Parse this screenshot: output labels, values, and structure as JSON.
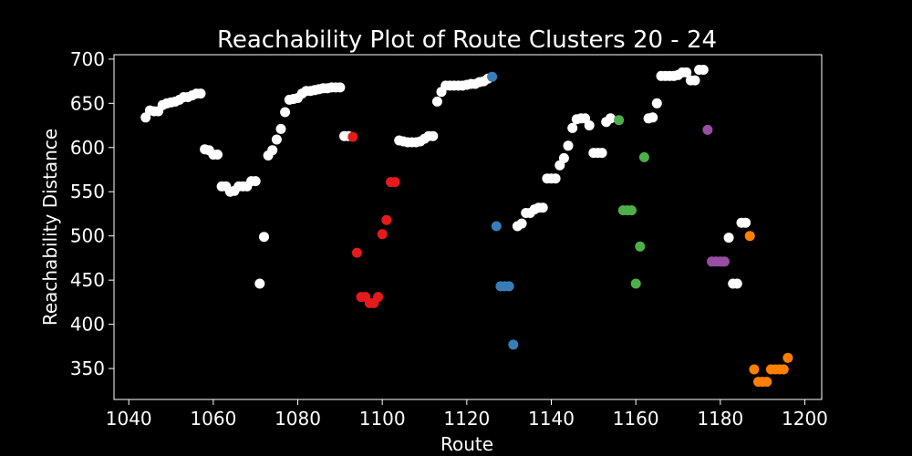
{
  "chart_data": {
    "type": "scatter",
    "title": "Reachability Plot of Route Clusters 20 - 24",
    "xlabel": "Route",
    "ylabel": "Reachability Distance",
    "xlim": [
      1036.5,
      1204.0
    ],
    "ylim": [
      315,
      705
    ],
    "xticks": [
      1040,
      1060,
      1080,
      1100,
      1120,
      1140,
      1160,
      1180,
      1200
    ],
    "yticks": [
      350,
      400,
      450,
      500,
      550,
      600,
      650,
      700
    ],
    "grid": false,
    "legend": "none",
    "series": [
      {
        "color": "#ffffff",
        "points": [
          [
            1044,
            634
          ],
          [
            1045,
            642
          ],
          [
            1046,
            641
          ],
          [
            1047,
            641
          ],
          [
            1048,
            648
          ],
          [
            1049,
            650
          ],
          [
            1050,
            651
          ],
          [
            1051,
            652
          ],
          [
            1052,
            654
          ],
          [
            1053,
            657
          ],
          [
            1054,
            657
          ],
          [
            1055,
            659
          ],
          [
            1056,
            661
          ],
          [
            1057,
            661
          ],
          [
            1058,
            598
          ],
          [
            1059,
            597
          ],
          [
            1060,
            592
          ],
          [
            1061,
            592
          ],
          [
            1062,
            556
          ],
          [
            1063,
            556
          ],
          [
            1064,
            550
          ],
          [
            1065,
            551
          ],
          [
            1066,
            556
          ],
          [
            1067,
            556
          ],
          [
            1068,
            556
          ],
          [
            1069,
            562
          ],
          [
            1070,
            562
          ],
          [
            1071,
            446
          ],
          [
            1072,
            499
          ],
          [
            1073,
            591
          ],
          [
            1074,
            597
          ],
          [
            1075,
            609
          ],
          [
            1076,
            621
          ],
          [
            1077,
            640
          ],
          [
            1078,
            654
          ],
          [
            1079,
            655
          ],
          [
            1080,
            656
          ],
          [
            1081,
            661
          ],
          [
            1082,
            664
          ],
          [
            1083,
            664
          ],
          [
            1084,
            665
          ],
          [
            1085,
            666
          ],
          [
            1086,
            667
          ],
          [
            1087,
            667
          ],
          [
            1088,
            668
          ],
          [
            1089,
            668
          ],
          [
            1090,
            668
          ],
          [
            1091,
            613
          ],
          [
            1092,
            613
          ],
          [
            1104,
            608
          ],
          [
            1105,
            607
          ],
          [
            1106,
            606
          ],
          [
            1107,
            606
          ],
          [
            1108,
            606
          ],
          [
            1109,
            607
          ],
          [
            1110,
            610
          ],
          [
            1111,
            613
          ],
          [
            1112,
            613
          ],
          [
            1113,
            652
          ],
          [
            1114,
            663
          ],
          [
            1115,
            670
          ],
          [
            1116,
            670
          ],
          [
            1117,
            670
          ],
          [
            1118,
            670
          ],
          [
            1119,
            670
          ],
          [
            1120,
            671
          ],
          [
            1121,
            672
          ],
          [
            1122,
            672
          ],
          [
            1123,
            674
          ],
          [
            1124,
            675
          ],
          [
            1125,
            678
          ],
          [
            1132,
            511
          ],
          [
            1133,
            514
          ],
          [
            1134,
            526
          ],
          [
            1135,
            526
          ],
          [
            1136,
            530
          ],
          [
            1137,
            532
          ],
          [
            1138,
            532
          ],
          [
            1139,
            565
          ],
          [
            1140,
            565
          ],
          [
            1141,
            565
          ],
          [
            1142,
            580
          ],
          [
            1143,
            588
          ],
          [
            1144,
            602
          ],
          [
            1145,
            622
          ],
          [
            1146,
            632
          ],
          [
            1147,
            633
          ],
          [
            1148,
            633
          ],
          [
            1149,
            625
          ],
          [
            1150,
            594
          ],
          [
            1151,
            594
          ],
          [
            1152,
            594
          ],
          [
            1153,
            629
          ],
          [
            1154,
            633
          ],
          [
            1163,
            633
          ],
          [
            1164,
            634
          ],
          [
            1165,
            650
          ],
          [
            1166,
            681
          ],
          [
            1167,
            681
          ],
          [
            1168,
            681
          ],
          [
            1169,
            681
          ],
          [
            1170,
            682
          ],
          [
            1171,
            685
          ],
          [
            1172,
            685
          ],
          [
            1173,
            676
          ],
          [
            1174,
            676
          ],
          [
            1175,
            688
          ],
          [
            1176,
            688
          ],
          [
            1182,
            498
          ],
          [
            1183,
            446
          ],
          [
            1184,
            446
          ],
          [
            1185,
            515
          ],
          [
            1186,
            515
          ]
        ]
      },
      {
        "color": "#e41a1c",
        "points": [
          [
            1093,
            612
          ],
          [
            1094,
            481
          ],
          [
            1095,
            431
          ],
          [
            1096,
            431
          ],
          [
            1097,
            424
          ],
          [
            1098,
            424
          ],
          [
            1099,
            431
          ],
          [
            1100,
            502
          ],
          [
            1101,
            518
          ],
          [
            1102,
            561
          ],
          [
            1103,
            561
          ]
        ]
      },
      {
        "color": "#377eb8",
        "points": [
          [
            1126,
            680
          ],
          [
            1127,
            511
          ],
          [
            1128,
            443
          ],
          [
            1129,
            443
          ],
          [
            1130,
            443
          ],
          [
            1131,
            377
          ]
        ]
      },
      {
        "color": "#4daf4a",
        "points": [
          [
            1156,
            631
          ],
          [
            1157,
            529
          ],
          [
            1158,
            529
          ],
          [
            1159,
            529
          ],
          [
            1160,
            446
          ],
          [
            1161,
            488
          ],
          [
            1162,
            589
          ]
        ]
      },
      {
        "color": "#984ea3",
        "points": [
          [
            1177,
            620
          ],
          [
            1178,
            471
          ],
          [
            1179,
            471
          ],
          [
            1180,
            471
          ],
          [
            1181,
            471
          ]
        ]
      },
      {
        "color": "#ff7f00",
        "points": [
          [
            1187,
            500
          ],
          [
            1188,
            349
          ],
          [
            1189,
            335
          ],
          [
            1190,
            335
          ],
          [
            1191,
            335
          ],
          [
            1192,
            349
          ],
          [
            1193,
            349
          ],
          [
            1194,
            349
          ],
          [
            1195,
            349
          ],
          [
            1196,
            362
          ]
        ]
      }
    ]
  }
}
